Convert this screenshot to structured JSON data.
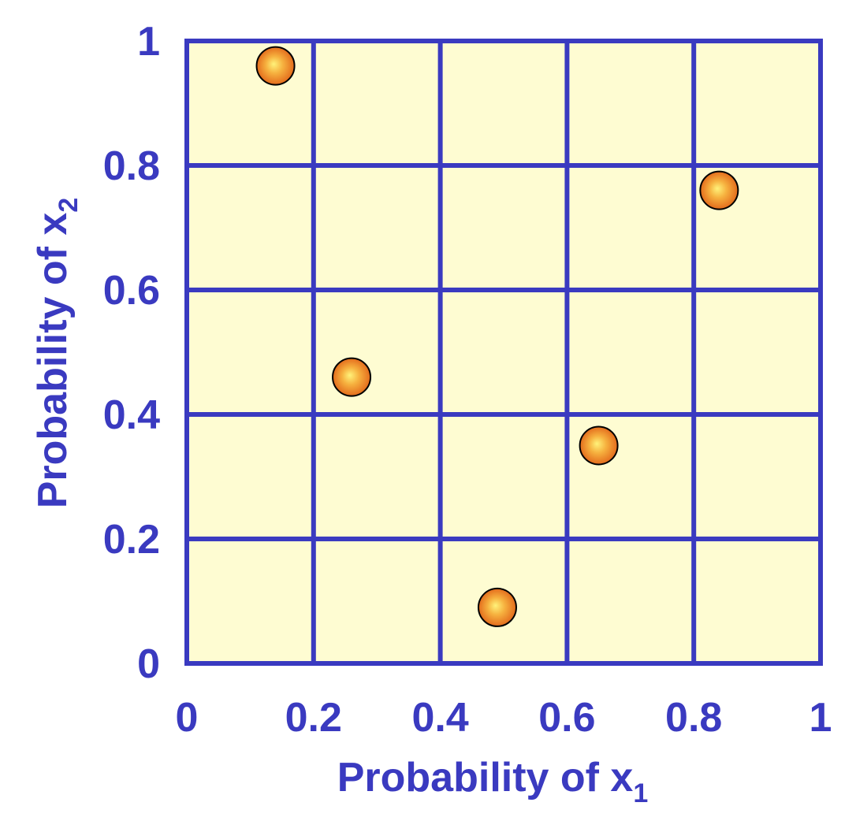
{
  "chart_data": {
    "type": "scatter",
    "title": "",
    "xlabel": "Probability of x",
    "xlabel_sub": "1",
    "ylabel": "Probability of x",
    "ylabel_sub": "2",
    "xlim": [
      0,
      1
    ],
    "ylim": [
      0,
      1
    ],
    "grid": true,
    "x_ticks": [
      "0",
      "0.2",
      "0.4",
      "0.6",
      "0.8",
      "1"
    ],
    "y_ticks": [
      "0",
      "0.2",
      "0.4",
      "0.6",
      "0.8",
      "1"
    ],
    "points": [
      {
        "x": 0.14,
        "y": 0.96
      },
      {
        "x": 0.26,
        "y": 0.46
      },
      {
        "x": 0.49,
        "y": 0.09
      },
      {
        "x": 0.65,
        "y": 0.35
      },
      {
        "x": 0.84,
        "y": 0.76
      }
    ]
  },
  "colors": {
    "axis_blue": "#3a3ac0",
    "plot_background": "#fefcd2",
    "point_highlight": "#fff27a",
    "point_mid": "#f6b13f",
    "point_edge": "#e36b1c"
  }
}
